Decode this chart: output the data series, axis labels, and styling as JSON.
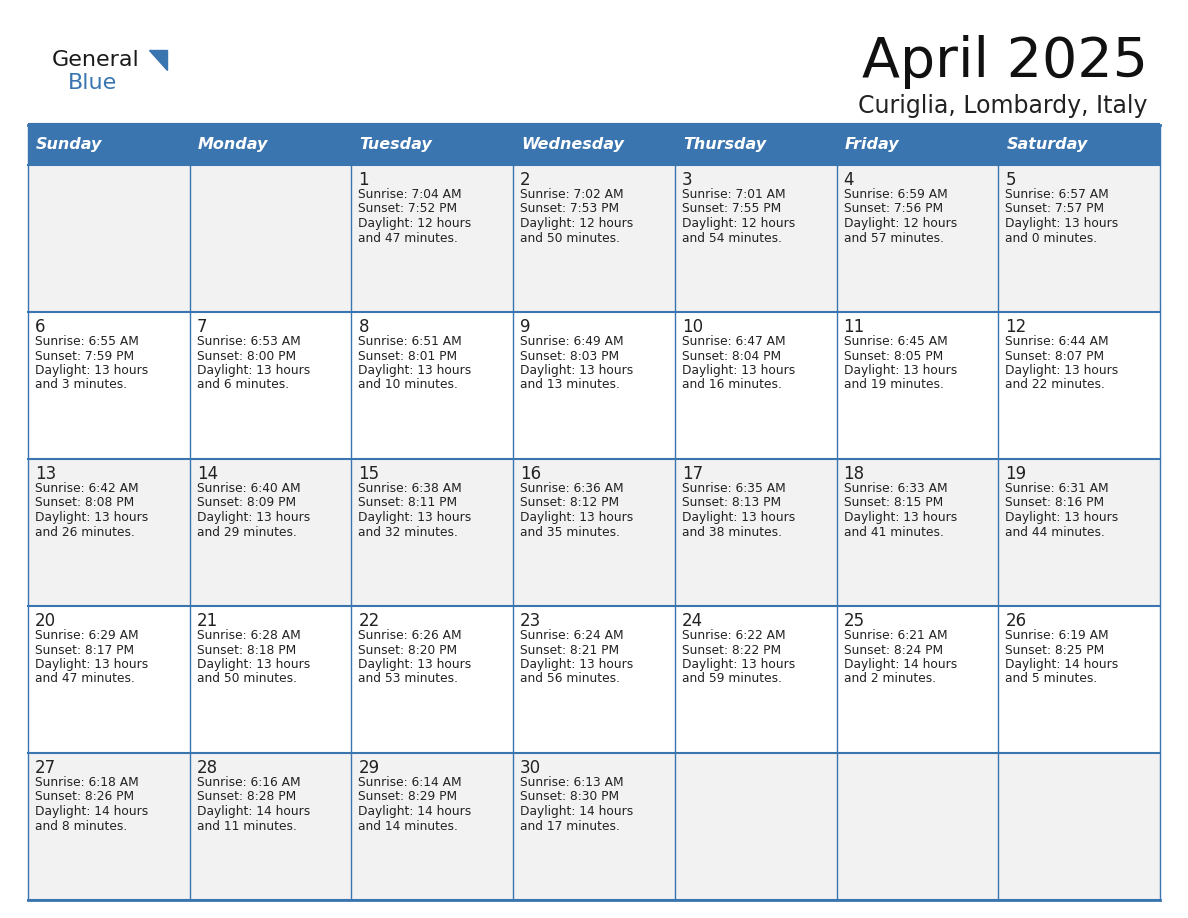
{
  "title": "April 2025",
  "subtitle": "Curiglia, Lombardy, Italy",
  "header_bg_color": "#3a75b0",
  "header_text_color": "#ffffff",
  "cell_bg_odd": "#f2f2f2",
  "cell_bg_even": "#ffffff",
  "border_color": "#3a75b0",
  "text_color": "#222222",
  "days_of_week": [
    "Sunday",
    "Monday",
    "Tuesday",
    "Wednesday",
    "Thursday",
    "Friday",
    "Saturday"
  ],
  "weeks": [
    [
      {
        "day": "",
        "sunrise": "",
        "sunset": "",
        "daylight": ""
      },
      {
        "day": "",
        "sunrise": "",
        "sunset": "",
        "daylight": ""
      },
      {
        "day": "1",
        "sunrise": "Sunrise: 7:04 AM",
        "sunset": "Sunset: 7:52 PM",
        "daylight": "Daylight: 12 hours\nand 47 minutes."
      },
      {
        "day": "2",
        "sunrise": "Sunrise: 7:02 AM",
        "sunset": "Sunset: 7:53 PM",
        "daylight": "Daylight: 12 hours\nand 50 minutes."
      },
      {
        "day": "3",
        "sunrise": "Sunrise: 7:01 AM",
        "sunset": "Sunset: 7:55 PM",
        "daylight": "Daylight: 12 hours\nand 54 minutes."
      },
      {
        "day": "4",
        "sunrise": "Sunrise: 6:59 AM",
        "sunset": "Sunset: 7:56 PM",
        "daylight": "Daylight: 12 hours\nand 57 minutes."
      },
      {
        "day": "5",
        "sunrise": "Sunrise: 6:57 AM",
        "sunset": "Sunset: 7:57 PM",
        "daylight": "Daylight: 13 hours\nand 0 minutes."
      }
    ],
    [
      {
        "day": "6",
        "sunrise": "Sunrise: 6:55 AM",
        "sunset": "Sunset: 7:59 PM",
        "daylight": "Daylight: 13 hours\nand 3 minutes."
      },
      {
        "day": "7",
        "sunrise": "Sunrise: 6:53 AM",
        "sunset": "Sunset: 8:00 PM",
        "daylight": "Daylight: 13 hours\nand 6 minutes."
      },
      {
        "day": "8",
        "sunrise": "Sunrise: 6:51 AM",
        "sunset": "Sunset: 8:01 PM",
        "daylight": "Daylight: 13 hours\nand 10 minutes."
      },
      {
        "day": "9",
        "sunrise": "Sunrise: 6:49 AM",
        "sunset": "Sunset: 8:03 PM",
        "daylight": "Daylight: 13 hours\nand 13 minutes."
      },
      {
        "day": "10",
        "sunrise": "Sunrise: 6:47 AM",
        "sunset": "Sunset: 8:04 PM",
        "daylight": "Daylight: 13 hours\nand 16 minutes."
      },
      {
        "day": "11",
        "sunrise": "Sunrise: 6:45 AM",
        "sunset": "Sunset: 8:05 PM",
        "daylight": "Daylight: 13 hours\nand 19 minutes."
      },
      {
        "day": "12",
        "sunrise": "Sunrise: 6:44 AM",
        "sunset": "Sunset: 8:07 PM",
        "daylight": "Daylight: 13 hours\nand 22 minutes."
      }
    ],
    [
      {
        "day": "13",
        "sunrise": "Sunrise: 6:42 AM",
        "sunset": "Sunset: 8:08 PM",
        "daylight": "Daylight: 13 hours\nand 26 minutes."
      },
      {
        "day": "14",
        "sunrise": "Sunrise: 6:40 AM",
        "sunset": "Sunset: 8:09 PM",
        "daylight": "Daylight: 13 hours\nand 29 minutes."
      },
      {
        "day": "15",
        "sunrise": "Sunrise: 6:38 AM",
        "sunset": "Sunset: 8:11 PM",
        "daylight": "Daylight: 13 hours\nand 32 minutes."
      },
      {
        "day": "16",
        "sunrise": "Sunrise: 6:36 AM",
        "sunset": "Sunset: 8:12 PM",
        "daylight": "Daylight: 13 hours\nand 35 minutes."
      },
      {
        "day": "17",
        "sunrise": "Sunrise: 6:35 AM",
        "sunset": "Sunset: 8:13 PM",
        "daylight": "Daylight: 13 hours\nand 38 minutes."
      },
      {
        "day": "18",
        "sunrise": "Sunrise: 6:33 AM",
        "sunset": "Sunset: 8:15 PM",
        "daylight": "Daylight: 13 hours\nand 41 minutes."
      },
      {
        "day": "19",
        "sunrise": "Sunrise: 6:31 AM",
        "sunset": "Sunset: 8:16 PM",
        "daylight": "Daylight: 13 hours\nand 44 minutes."
      }
    ],
    [
      {
        "day": "20",
        "sunrise": "Sunrise: 6:29 AM",
        "sunset": "Sunset: 8:17 PM",
        "daylight": "Daylight: 13 hours\nand 47 minutes."
      },
      {
        "day": "21",
        "sunrise": "Sunrise: 6:28 AM",
        "sunset": "Sunset: 8:18 PM",
        "daylight": "Daylight: 13 hours\nand 50 minutes."
      },
      {
        "day": "22",
        "sunrise": "Sunrise: 6:26 AM",
        "sunset": "Sunset: 8:20 PM",
        "daylight": "Daylight: 13 hours\nand 53 minutes."
      },
      {
        "day": "23",
        "sunrise": "Sunrise: 6:24 AM",
        "sunset": "Sunset: 8:21 PM",
        "daylight": "Daylight: 13 hours\nand 56 minutes."
      },
      {
        "day": "24",
        "sunrise": "Sunrise: 6:22 AM",
        "sunset": "Sunset: 8:22 PM",
        "daylight": "Daylight: 13 hours\nand 59 minutes."
      },
      {
        "day": "25",
        "sunrise": "Sunrise: 6:21 AM",
        "sunset": "Sunset: 8:24 PM",
        "daylight": "Daylight: 14 hours\nand 2 minutes."
      },
      {
        "day": "26",
        "sunrise": "Sunrise: 6:19 AM",
        "sunset": "Sunset: 8:25 PM",
        "daylight": "Daylight: 14 hours\nand 5 minutes."
      }
    ],
    [
      {
        "day": "27",
        "sunrise": "Sunrise: 6:18 AM",
        "sunset": "Sunset: 8:26 PM",
        "daylight": "Daylight: 14 hours\nand 8 minutes."
      },
      {
        "day": "28",
        "sunrise": "Sunrise: 6:16 AM",
        "sunset": "Sunset: 8:28 PM",
        "daylight": "Daylight: 14 hours\nand 11 minutes."
      },
      {
        "day": "29",
        "sunrise": "Sunrise: 6:14 AM",
        "sunset": "Sunset: 8:29 PM",
        "daylight": "Daylight: 14 hours\nand 14 minutes."
      },
      {
        "day": "30",
        "sunrise": "Sunrise: 6:13 AM",
        "sunset": "Sunset: 8:30 PM",
        "daylight": "Daylight: 14 hours\nand 17 minutes."
      },
      {
        "day": "",
        "sunrise": "",
        "sunset": "",
        "daylight": ""
      },
      {
        "day": "",
        "sunrise": "",
        "sunset": "",
        "daylight": ""
      },
      {
        "day": "",
        "sunrise": "",
        "sunset": "",
        "daylight": ""
      }
    ]
  ],
  "logo_general_color": "#1a1a1a",
  "logo_blue_color": "#3a75b0",
  "logo_triangle_color": "#3a75b0"
}
